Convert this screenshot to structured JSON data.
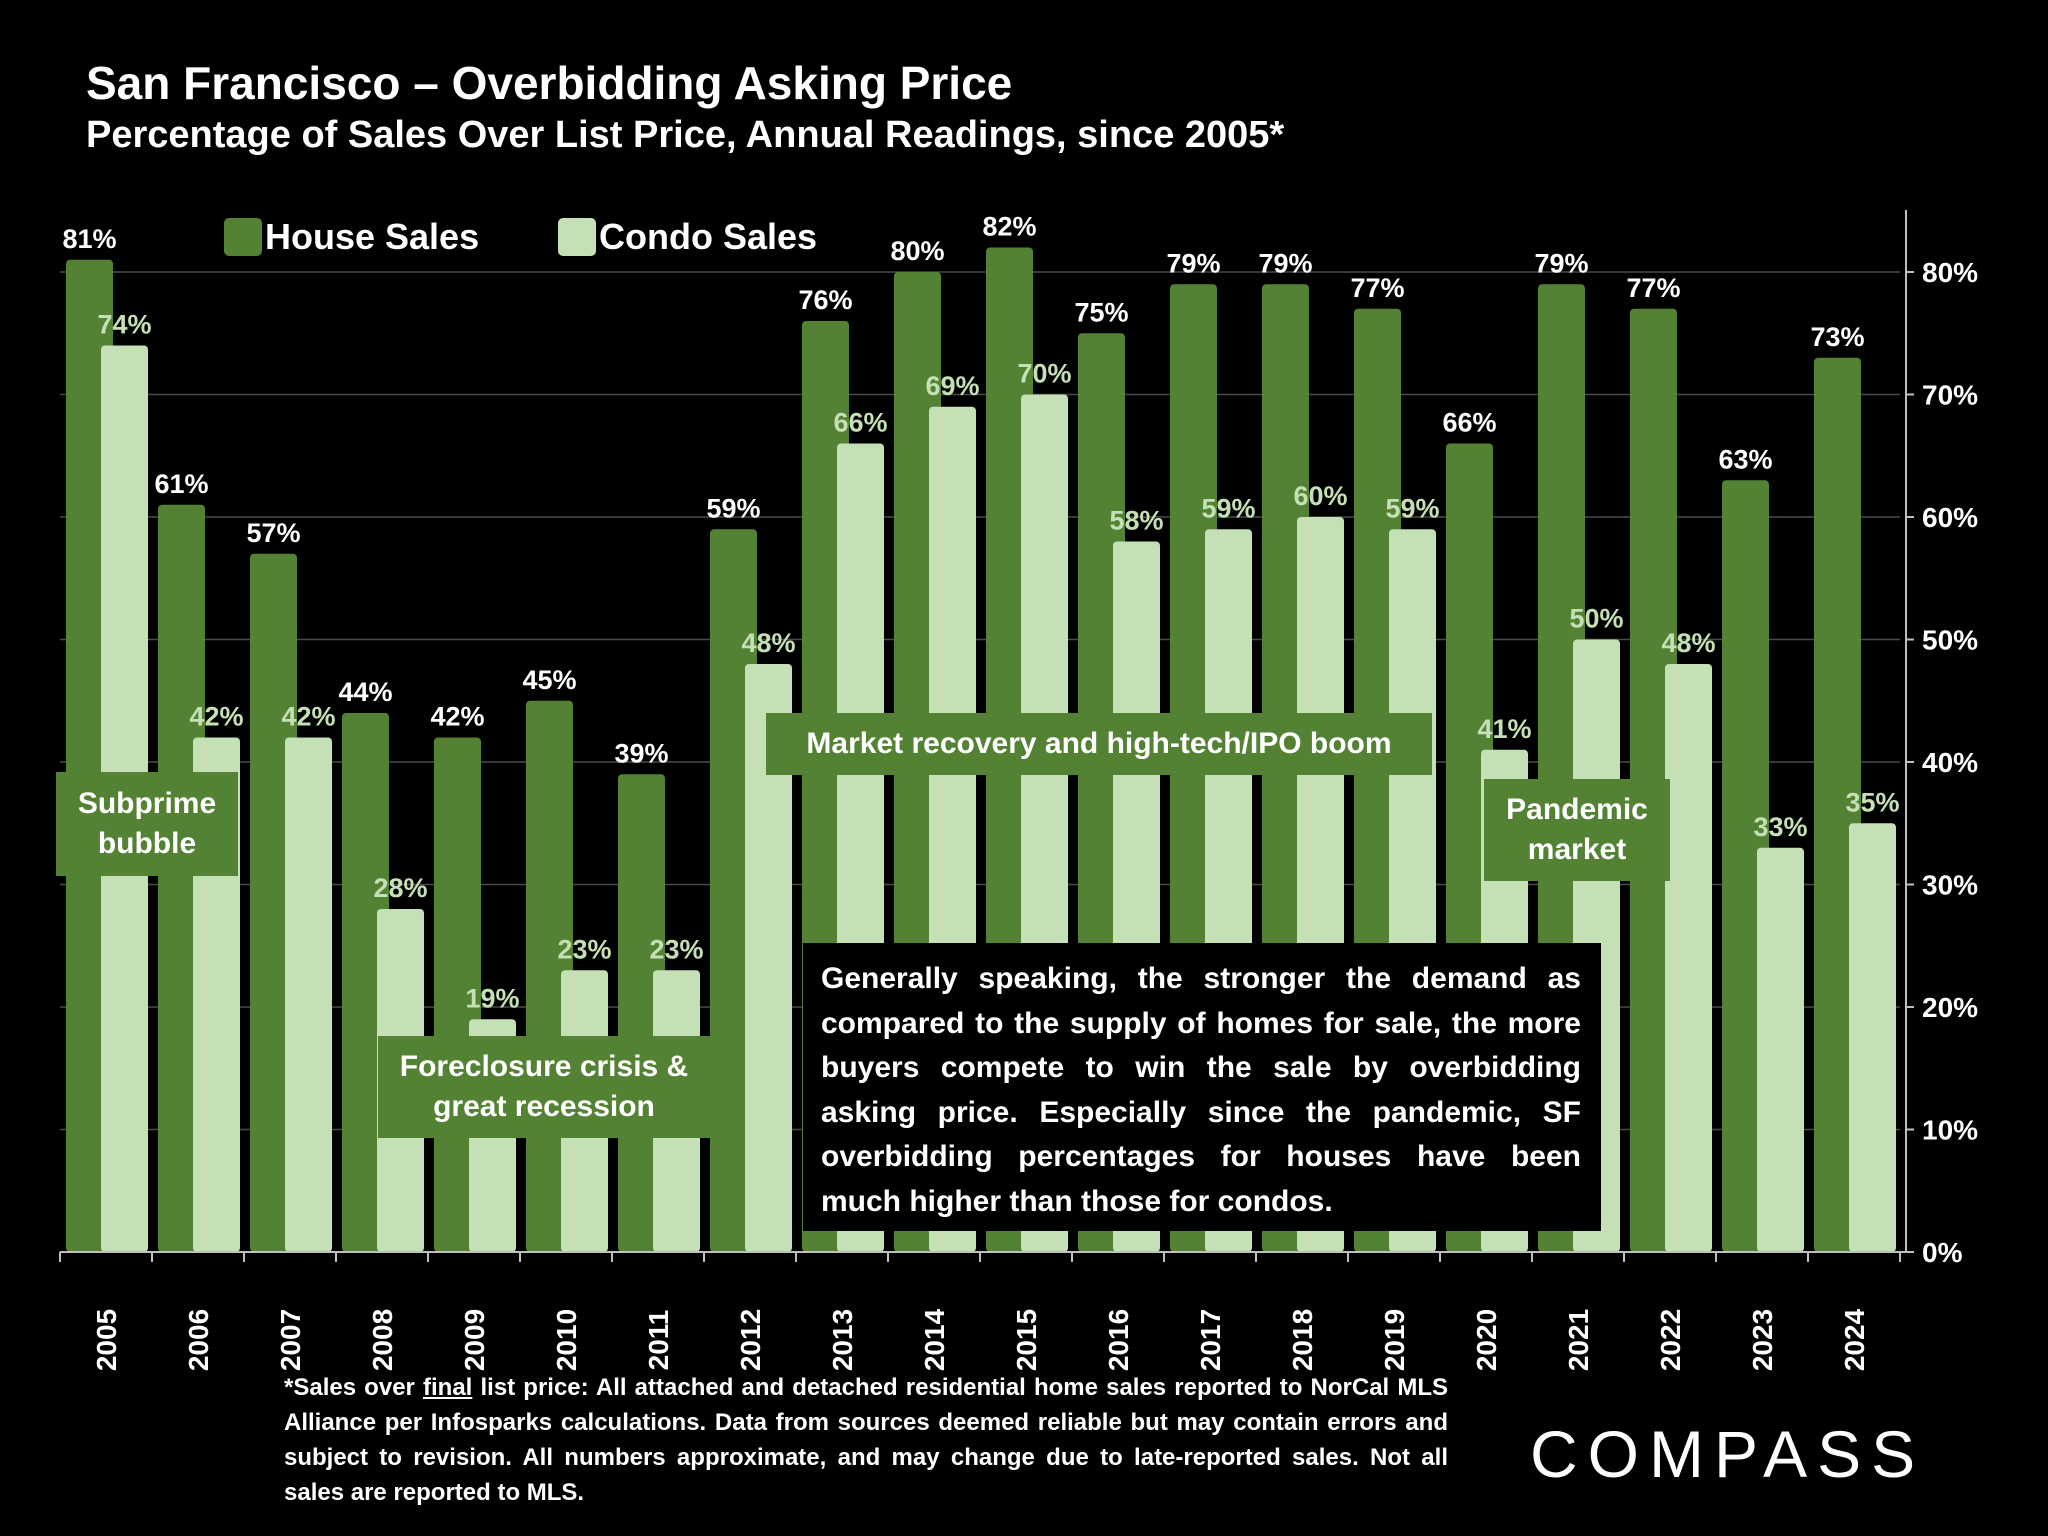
{
  "header": {
    "title": "San Francisco – Overbidding Asking Price",
    "subtitle": "Percentage of Sales Over List Price, Annual Readings, since 2005*"
  },
  "colors": {
    "house": "#548235",
    "condo": "#c5e0b4",
    "background": "#000000"
  },
  "chart_data": {
    "type": "bar",
    "title": "San Francisco – Overbidding Asking Price",
    "subtitle": "Percentage of Sales Over List Price, Annual Readings, since 2005*",
    "categories": [
      "2005",
      "2006",
      "2007",
      "2008",
      "2009",
      "2010",
      "2011",
      "2012",
      "2013",
      "2014",
      "2015",
      "2016",
      "2017",
      "2018",
      "2019",
      "2020",
      "2021",
      "2022",
      "2023",
      "2024"
    ],
    "series": [
      {
        "name": "House Sales",
        "values": [
          81,
          61,
          57,
          44,
          42,
          45,
          39,
          59,
          76,
          80,
          82,
          75,
          79,
          79,
          77,
          66,
          79,
          77,
          63,
          73
        ]
      },
      {
        "name": "Condo Sales",
        "values": [
          74,
          42,
          42,
          28,
          19,
          23,
          23,
          48,
          66,
          69,
          70,
          58,
          59,
          60,
          59,
          41,
          50,
          48,
          33,
          35
        ]
      }
    ],
    "value_labels": {
      "house": [
        "81%",
        "61%",
        "57%",
        "44%",
        "42%",
        "45%",
        "39%",
        "59%",
        "76%",
        "80%",
        "82%",
        "75%",
        "79%",
        "79%",
        "77%",
        "66%",
        "79%",
        "77%",
        "63%",
        "73%"
      ],
      "condo": [
        "74%",
        "42%",
        "42%",
        "28%",
        "19%",
        "23%",
        "23%",
        "48%",
        "66%",
        "69%",
        "70%",
        "58%",
        "59%",
        "60%",
        "59%",
        "41%",
        "50%",
        "48%",
        "33%",
        "35%"
      ]
    },
    "y_ticks": [
      "0%",
      "10%",
      "20%",
      "30%",
      "40%",
      "50%",
      "60%",
      "70%",
      "80%"
    ],
    "ylim": [
      0,
      85
    ],
    "y_axis_side": "right",
    "grid": true,
    "legend": "top-left"
  },
  "annotations": {
    "subprime": "Subprime bubble",
    "foreclosure": "Foreclosure crisis & great recession",
    "recovery": "Market recovery and high-tech/IPO boom",
    "pandemic": "Pandemic market",
    "callout": "Generally speaking, the stronger the demand as compared to the supply of homes for sale, the more buyers compete to win the sale by overbidding asking price. Especially since the pandemic, SF overbidding percentages for houses have been much higher than those for condos."
  },
  "footnote": {
    "prefix": "*Sales over ",
    "underlined": "final",
    "rest": " list price: All attached and detached residential home sales reported to NorCal MLS Alliance per Infosparks calculations. Data from sources deemed reliable but may contain errors and subject to revision. All numbers approximate, and may change due to late-reported sales. Not all sales are reported to MLS."
  },
  "logo": {
    "text": "COMPASS"
  }
}
